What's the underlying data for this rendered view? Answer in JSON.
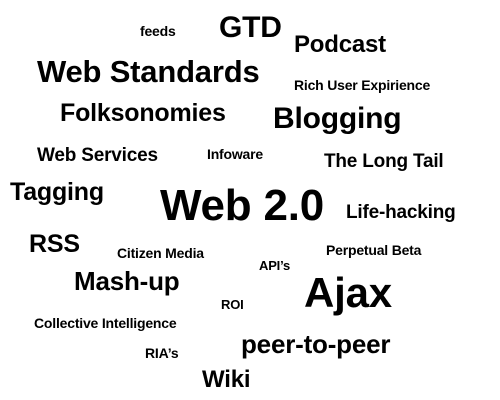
{
  "tags": {
    "feeds": "feeds",
    "gtd": "GTD",
    "podcast": "Podcast",
    "web_standards": "Web Standards",
    "rich_user_experience": "Rich User Expirience",
    "folksonomies": "Folksonomies",
    "blogging": "Blogging",
    "web_services": "Web Services",
    "infoware": "Infoware",
    "long_tail": "The Long Tail",
    "tagging": "Tagging",
    "web20": "Web 2.0",
    "life_hacking": "Life-hacking",
    "rss": "RSS",
    "citizen_media": "Citizen Media",
    "perpetual_beta": "Perpetual Beta",
    "apis": "API’s",
    "mash_up": "Mash-up",
    "ajax": "Ajax",
    "roi": "ROI",
    "collective_intelligence": "Collective Intelligence",
    "peer_to_peer": "peer-to-peer",
    "rias": "RIA’s",
    "wiki": "Wiki"
  },
  "colors": {
    "background": "#ffffff",
    "text": "#000000"
  }
}
